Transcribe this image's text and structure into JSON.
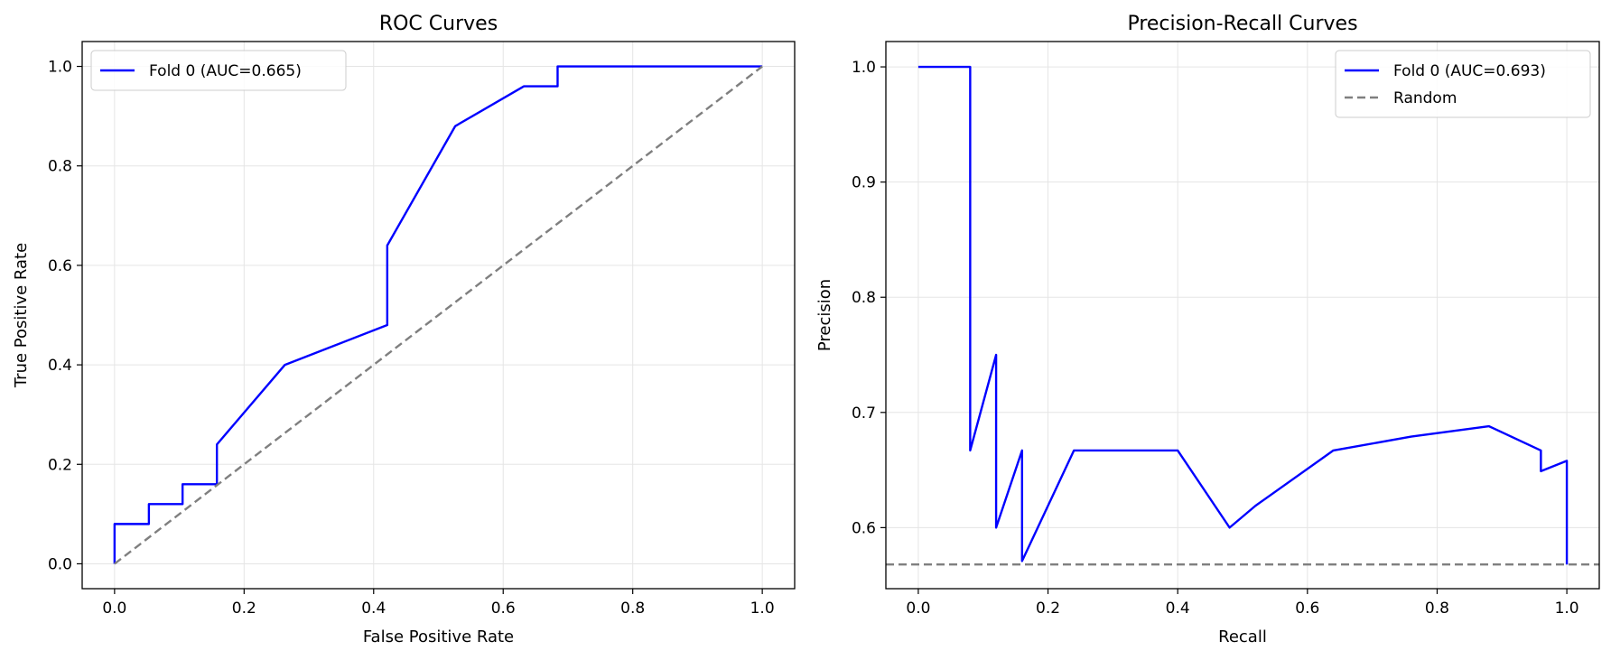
{
  "chart_data": [
    {
      "type": "line",
      "title": "ROC Curves",
      "xlabel": "False Positive Rate",
      "ylabel": "True Positive Rate",
      "xlim": [
        -0.05,
        1.05
      ],
      "ylim": [
        -0.05,
        1.05
      ],
      "xticks": [
        0.0,
        0.2,
        0.4,
        0.6,
        0.8,
        1.0
      ],
      "yticks": [
        0.0,
        0.2,
        0.4,
        0.6,
        0.8,
        1.0
      ],
      "xtick_labels": [
        "0.0",
        "0.2",
        "0.4",
        "0.6",
        "0.8",
        "1.0"
      ],
      "ytick_labels": [
        "0.0",
        "0.2",
        "0.4",
        "0.6",
        "0.8",
        "1.0"
      ],
      "grid": true,
      "legend": "upper-left",
      "series": [
        {
          "name": "Fold 0 (AUC=0.665)",
          "color": "#0000ff",
          "dash": "solid",
          "x": [
            0.0,
            0.0,
            0.053,
            0.053,
            0.105,
            0.105,
            0.158,
            0.158,
            0.263,
            0.421,
            0.421,
            0.526,
            0.632,
            0.684,
            0.684,
            1.0
          ],
          "y": [
            0.0,
            0.08,
            0.08,
            0.12,
            0.12,
            0.16,
            0.16,
            0.24,
            0.4,
            0.48,
            0.64,
            0.88,
            0.96,
            0.96,
            1.0,
            1.0
          ]
        },
        {
          "color": "#7f7f7f",
          "dash": "dashed",
          "x": [
            0.0,
            1.0
          ],
          "y": [
            0.0,
            1.0
          ]
        }
      ]
    },
    {
      "type": "line",
      "title": "Precision-Recall Curves",
      "xlabel": "Recall",
      "ylabel": "Precision",
      "xlim": [
        -0.05,
        1.05
      ],
      "ylim": [
        0.547,
        1.022
      ],
      "xticks": [
        0.0,
        0.2,
        0.4,
        0.6,
        0.8,
        1.0
      ],
      "yticks": [
        0.6,
        0.7,
        0.8,
        0.9,
        1.0
      ],
      "xtick_labels": [
        "0.0",
        "0.2",
        "0.4",
        "0.6",
        "0.8",
        "1.0"
      ],
      "ytick_labels": [
        "0.6",
        "0.7",
        "0.8",
        "0.9",
        "1.0"
      ],
      "grid": true,
      "legend": "upper-right",
      "series": [
        {
          "name": "Fold 0 (AUC=0.693)",
          "color": "#0000ff",
          "dash": "solid",
          "x": [
            0.0,
            0.08,
            0.08,
            0.12,
            0.12,
            0.16,
            0.16,
            0.24,
            0.4,
            0.48,
            0.52,
            0.64,
            0.76,
            0.88,
            0.96,
            0.96,
            1.0,
            1.0
          ],
          "y": [
            1.0,
            1.0,
            0.667,
            0.75,
            0.6,
            0.667,
            0.571,
            0.667,
            0.667,
            0.6,
            0.619,
            0.667,
            0.679,
            0.688,
            0.667,
            0.649,
            0.658,
            0.568
          ]
        },
        {
          "name": "Random",
          "color": "#7f7f7f",
          "dash": "dashed",
          "hline": 0.568
        }
      ]
    }
  ]
}
